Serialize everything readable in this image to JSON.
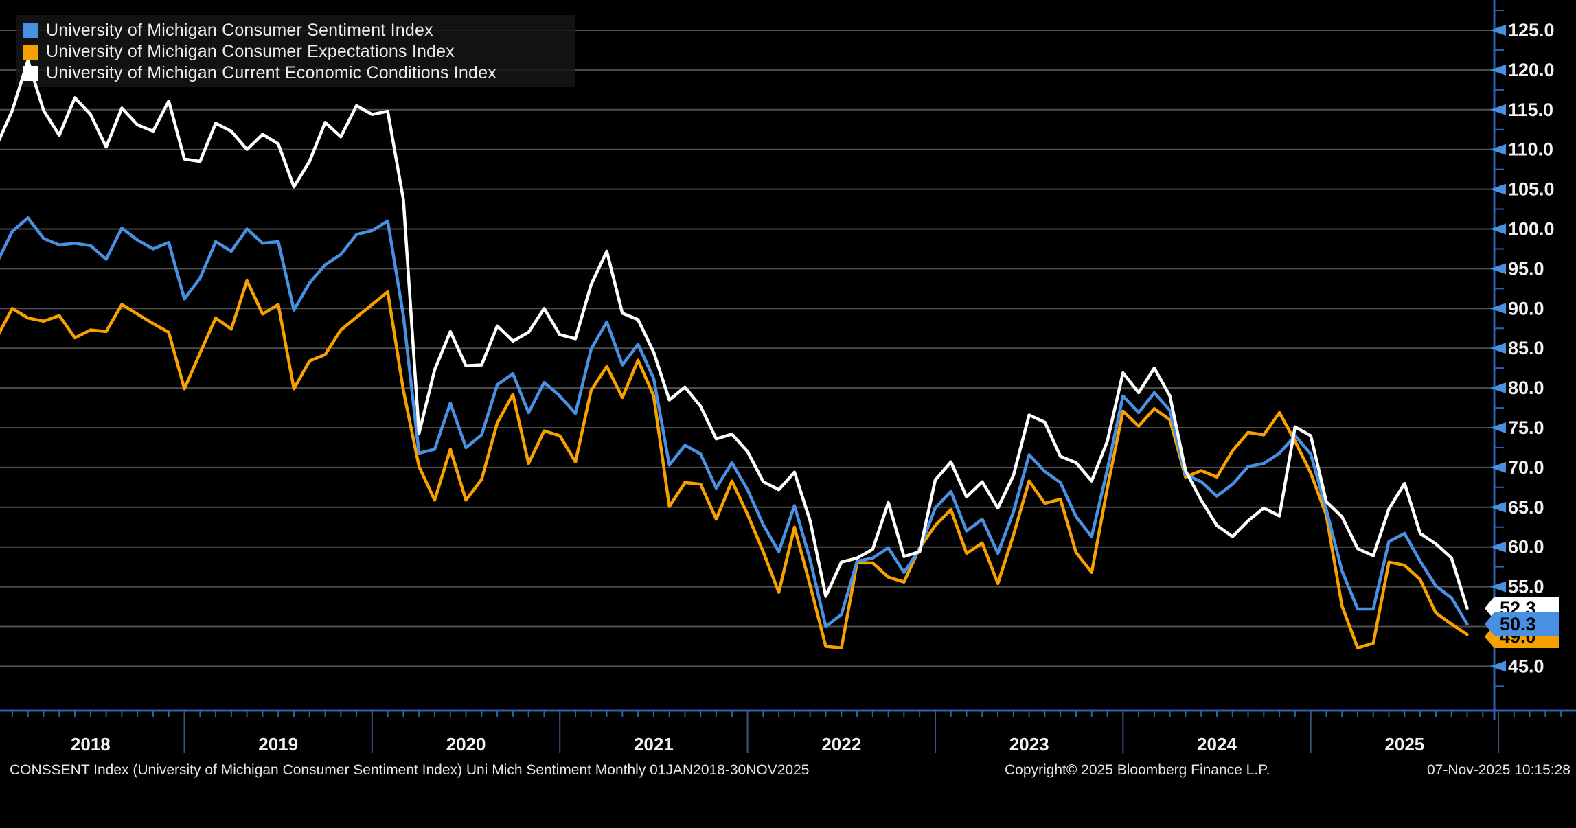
{
  "colors": {
    "background": "#000000",
    "grid": "#4f4f4f",
    "axis": "#2a62ae",
    "tick_arrow": "#4a90e2",
    "year_divider": "#39567f",
    "tick_text": "#f2f2f2",
    "legend_bg": "#161616",
    "sentiment": "#4a90e2",
    "expectations": "#f6a101",
    "current": "#ffffff",
    "tag_text": "#000000"
  },
  "legend": {
    "items": [
      {
        "series": "sentiment"
      },
      {
        "series": "expectations"
      },
      {
        "series": "current"
      }
    ]
  },
  "tags": [
    {
      "series": "current",
      "value": "52.3"
    },
    {
      "series": "sentiment",
      "value": "50.3"
    },
    {
      "series": "expectations",
      "value": "49.0"
    }
  ],
  "footer": {
    "left": "CONSSENT Index (University of Michigan Consumer Sentiment Index) Uni Mich Sentiment Monthly 01JAN2018-30NOV2025",
    "center": "Copyright© 2025 Bloomberg Finance L.P.",
    "right": "07-Nov-2025 10:15:28"
  },
  "chart_data": {
    "type": "line",
    "x_unit": "month",
    "x_start": "2018-01",
    "x_end": "2025-11",
    "points_per_series": 95,
    "grid": "horizontal",
    "legend_position": "top-left",
    "ylim": [
      39.4,
      129.0
    ],
    "y_tick_step": 5.0,
    "y_minor_tick_step": 2.5,
    "y_ticks": [
      "45.0",
      "50.0",
      "55.0",
      "60.0",
      "65.0",
      "70.0",
      "75.0",
      "80.0",
      "85.0",
      "90.0",
      "95.0",
      "100.0",
      "105.0",
      "110.0",
      "115.0",
      "120.0",
      "125.0"
    ],
    "year_labels": [
      "2018",
      "2019",
      "2020",
      "2021",
      "2022",
      "2023",
      "2024",
      "2025"
    ],
    "series": [
      {
        "key": "sentiment",
        "name": "University of Michigan Consumer Sentiment Index",
        "color": "#4a90e2",
        "last_value": 50.3,
        "values": [
          95.7,
          99.7,
          101.4,
          98.8,
          98.0,
          98.2,
          97.9,
          96.2,
          100.1,
          98.6,
          97.5,
          98.3,
          91.2,
          93.8,
          98.4,
          97.2,
          100.0,
          98.2,
          98.4,
          89.8,
          93.2,
          95.5,
          96.8,
          99.3,
          99.8,
          101.0,
          89.1,
          71.8,
          72.3,
          78.1,
          72.5,
          74.1,
          80.4,
          81.8,
          76.9,
          80.7,
          79.0,
          76.8,
          84.9,
          88.3,
          82.9,
          85.5,
          81.2,
          70.3,
          72.8,
          71.7,
          67.4,
          70.6,
          67.2,
          62.8,
          59.4,
          65.2,
          58.4,
          50.0,
          51.5,
          58.2,
          58.6,
          59.9,
          56.8,
          59.7,
          64.9,
          67.0,
          62.0,
          63.5,
          59.2,
          64.4,
          71.6,
          69.5,
          68.1,
          63.8,
          61.3,
          69.7,
          79.0,
          76.9,
          79.4,
          77.2,
          69.1,
          68.2,
          66.4,
          67.9,
          70.1,
          70.5,
          71.8,
          74.0,
          71.7,
          64.7,
          57.0,
          52.2,
          52.2,
          60.7,
          61.7,
          58.2,
          55.1,
          53.6,
          50.3
        ]
      },
      {
        "key": "expectations",
        "name": "University of Michigan Consumer Expectations Index",
        "color": "#f6a101",
        "last_value": 49.0,
        "values": [
          86.3,
          90.0,
          88.8,
          88.4,
          89.1,
          86.3,
          87.3,
          87.1,
          90.5,
          89.3,
          88.1,
          87.0,
          79.9,
          84.4,
          88.8,
          87.4,
          93.5,
          89.3,
          90.5,
          79.9,
          83.4,
          84.2,
          87.3,
          88.9,
          90.5,
          92.1,
          79.7,
          70.1,
          65.9,
          72.3,
          65.9,
          68.5,
          75.6,
          79.2,
          70.5,
          74.6,
          74.0,
          70.7,
          79.7,
          82.7,
          78.8,
          83.5,
          79.0,
          65.1,
          68.1,
          67.9,
          63.5,
          68.3,
          64.1,
          59.4,
          54.3,
          62.5,
          55.2,
          47.5,
          47.3,
          58.0,
          58.0,
          56.2,
          55.6,
          59.9,
          62.7,
          64.7,
          59.2,
          60.5,
          55.4,
          61.5,
          68.3,
          65.5,
          66.0,
          59.3,
          56.8,
          67.4,
          77.1,
          75.2,
          77.4,
          76.0,
          68.8,
          69.6,
          68.8,
          72.1,
          74.4,
          74.1,
          76.9,
          73.3,
          69.3,
          64.0,
          52.6,
          47.3,
          47.9,
          58.1,
          57.7,
          55.9,
          51.7,
          50.3,
          49.0
        ]
      },
      {
        "key": "current",
        "name": "University of Michigan Current Economic Conditions Index",
        "color": "#ffffff",
        "last_value": 52.3,
        "values": [
          110.5,
          114.9,
          121.2,
          114.9,
          111.8,
          116.5,
          114.4,
          110.3,
          115.2,
          113.1,
          112.3,
          116.1,
          108.8,
          108.5,
          113.3,
          112.3,
          110.0,
          111.9,
          110.7,
          105.3,
          108.5,
          113.4,
          111.6,
          115.5,
          114.4,
          114.8,
          103.7,
          74.3,
          82.3,
          87.1,
          82.8,
          82.9,
          87.8,
          85.9,
          87.0,
          90.0,
          86.7,
          86.2,
          93.0,
          97.2,
          89.4,
          88.6,
          84.5,
          78.5,
          80.1,
          77.7,
          73.6,
          74.2,
          72.0,
          68.2,
          67.2,
          69.4,
          63.3,
          53.8,
          58.1,
          58.6,
          59.7,
          65.6,
          58.8,
          59.4,
          68.4,
          70.7,
          66.3,
          68.2,
          64.9,
          69.0,
          76.6,
          75.7,
          71.4,
          70.6,
          68.3,
          73.3,
          81.9,
          79.4,
          82.5,
          79.0,
          69.6,
          65.9,
          62.7,
          61.3,
          63.3,
          64.9,
          63.9,
          75.1,
          74.0,
          65.7,
          63.8,
          59.8,
          58.9,
          64.8,
          68.0,
          61.7,
          60.4,
          58.6,
          52.3
        ]
      }
    ]
  }
}
